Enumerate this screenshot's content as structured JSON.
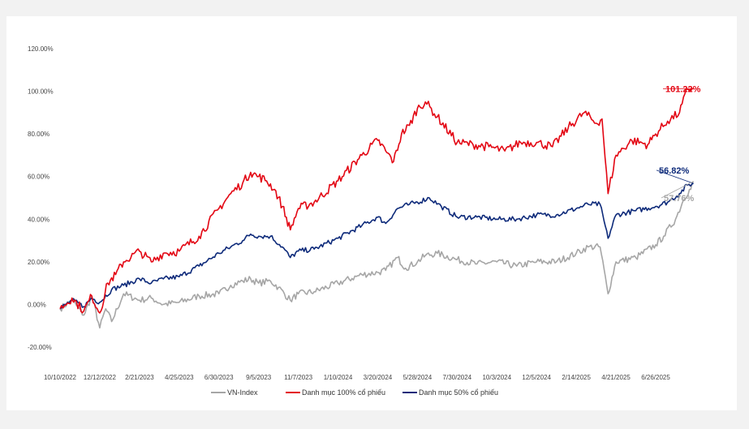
{
  "colors": {
    "vn_index": "#a6a6a6",
    "portfolio_100": "#e30613",
    "portfolio_50": "#0d2a7a"
  },
  "chart_data": {
    "type": "line",
    "title": "",
    "xlabel": "",
    "ylabel": "",
    "ylim": [
      -20,
      120
    ],
    "yticks": [
      "120.00%",
      "100.00%",
      "80.00%",
      "60.00%",
      "40.00%",
      "20.00%",
      "0.00%",
      "-20.00%"
    ],
    "xticks": [
      "10/10/2022",
      "12/12/2022",
      "2/21/2023",
      "4/25/2023",
      "6/30/2023",
      "9/5/2023",
      "11/7/2023",
      "1/10/2024",
      "3/20/2024",
      "5/28/2024",
      "7/30/2024",
      "10/3/2024",
      "12/5/2024",
      "2/14/2025",
      "4/21/2025",
      "6/26/2025"
    ],
    "grid": false,
    "legend_position": "bottom",
    "end_labels": {
      "portfolio_100": "101.22%",
      "portfolio_50": "56.82%",
      "vn_index": "57.76%"
    },
    "series": [
      {
        "name": "VN-Index",
        "key": "vn_index",
        "values": [
          [
            0,
            -2
          ],
          [
            0.3,
            2
          ],
          [
            0.6,
            -5
          ],
          [
            0.8,
            4
          ],
          [
            1,
            -11
          ],
          [
            1.15,
            -2
          ],
          [
            1.3,
            -8
          ],
          [
            1.6,
            5
          ],
          [
            2,
            2
          ],
          [
            2.3,
            3
          ],
          [
            2.6,
            0
          ],
          [
            3,
            1
          ],
          [
            3.5,
            4
          ],
          [
            4,
            5
          ],
          [
            4.3,
            9
          ],
          [
            4.6,
            11
          ],
          [
            4.8,
            12
          ],
          [
            5,
            10
          ],
          [
            5.3,
            11
          ],
          [
            5.5,
            8
          ],
          [
            5.8,
            2
          ],
          [
            6,
            5
          ],
          [
            6.4,
            6
          ],
          [
            7,
            10
          ],
          [
            7.6,
            14
          ],
          [
            8,
            15
          ],
          [
            8.2,
            16
          ],
          [
            8.5,
            22
          ],
          [
            8.7,
            17
          ],
          [
            9,
            20
          ],
          [
            9.2,
            23
          ],
          [
            9.5,
            24
          ],
          [
            10,
            21
          ],
          [
            10.5,
            19
          ],
          [
            11,
            20
          ],
          [
            11.5,
            18
          ],
          [
            12,
            20
          ],
          [
            12.5,
            20
          ],
          [
            13,
            24
          ],
          [
            13.3,
            27
          ],
          [
            13.6,
            27
          ],
          [
            13.8,
            5
          ],
          [
            14,
            20
          ],
          [
            14.5,
            22
          ],
          [
            15,
            28
          ],
          [
            15.2,
            32
          ],
          [
            15.5,
            40
          ],
          [
            15.7,
            49
          ],
          [
            15.85,
            54
          ],
          [
            15.95,
            57.76
          ]
        ]
      },
      {
        "name": "Danh mục 100% cổ phiếu",
        "key": "portfolio_100",
        "values": [
          [
            0,
            -2
          ],
          [
            0.3,
            3
          ],
          [
            0.6,
            -3
          ],
          [
            0.8,
            4
          ],
          [
            1,
            -4
          ],
          [
            1.2,
            10
          ],
          [
            1.4,
            14
          ],
          [
            1.6,
            20
          ],
          [
            2,
            25
          ],
          [
            2.3,
            20
          ],
          [
            2.6,
            24
          ],
          [
            3,
            25
          ],
          [
            3.5,
            32
          ],
          [
            4,
            45
          ],
          [
            4.3,
            52
          ],
          [
            4.6,
            57
          ],
          [
            4.8,
            62
          ],
          [
            5,
            60
          ],
          [
            5.2,
            58
          ],
          [
            5.4,
            54
          ],
          [
            5.6,
            46
          ],
          [
            5.8,
            35
          ],
          [
            6,
            45
          ],
          [
            6.4,
            48
          ],
          [
            7,
            58
          ],
          [
            7.6,
            70
          ],
          [
            8,
            77
          ],
          [
            8.2,
            72
          ],
          [
            8.4,
            67
          ],
          [
            8.6,
            80
          ],
          [
            8.8,
            84
          ],
          [
            9,
            92
          ],
          [
            9.2,
            95
          ],
          [
            9.5,
            88
          ],
          [
            10,
            76
          ],
          [
            10.4,
            75
          ],
          [
            10.8,
            74
          ],
          [
            11.2,
            72
          ],
          [
            11.6,
            76
          ],
          [
            12,
            76
          ],
          [
            12.4,
            74
          ],
          [
            12.8,
            83
          ],
          [
            13.2,
            90
          ],
          [
            13.5,
            85
          ],
          [
            13.65,
            87
          ],
          [
            13.8,
            52
          ],
          [
            14,
            70
          ],
          [
            14.4,
            77
          ],
          [
            14.8,
            75
          ],
          [
            15,
            80
          ],
          [
            15.3,
            86
          ],
          [
            15.6,
            90
          ],
          [
            15.8,
            101
          ],
          [
            15.95,
            101.22
          ]
        ]
      },
      {
        "name": "Danh mục 50% cổ phiếu",
        "key": "portfolio_50",
        "values": [
          [
            0,
            -2
          ],
          [
            0.3,
            2
          ],
          [
            0.6,
            -1
          ],
          [
            0.8,
            3
          ],
          [
            1,
            1
          ],
          [
            1.3,
            7
          ],
          [
            1.6,
            9
          ],
          [
            2,
            12
          ],
          [
            2.3,
            10
          ],
          [
            2.6,
            12
          ],
          [
            3,
            13
          ],
          [
            3.5,
            18
          ],
          [
            4,
            24
          ],
          [
            4.3,
            27
          ],
          [
            4.6,
            30
          ],
          [
            4.8,
            33
          ],
          [
            5,
            32
          ],
          [
            5.3,
            32
          ],
          [
            5.6,
            27
          ],
          [
            5.8,
            22
          ],
          [
            6,
            25
          ],
          [
            6.4,
            26
          ],
          [
            7,
            31
          ],
          [
            7.6,
            37
          ],
          [
            8,
            41
          ],
          [
            8.2,
            38
          ],
          [
            8.5,
            45
          ],
          [
            8.8,
            47
          ],
          [
            9,
            48
          ],
          [
            9.3,
            50
          ],
          [
            9.6,
            46
          ],
          [
            10,
            41
          ],
          [
            10.5,
            41
          ],
          [
            11,
            40
          ],
          [
            11.5,
            40
          ],
          [
            12,
            42
          ],
          [
            12.5,
            42
          ],
          [
            13,
            45
          ],
          [
            13.3,
            47
          ],
          [
            13.6,
            47
          ],
          [
            13.8,
            31
          ],
          [
            14,
            42
          ],
          [
            14.5,
            44
          ],
          [
            15,
            46
          ],
          [
            15.3,
            48
          ],
          [
            15.6,
            52
          ],
          [
            15.8,
            56
          ],
          [
            15.95,
            56.82
          ]
        ]
      }
    ]
  }
}
